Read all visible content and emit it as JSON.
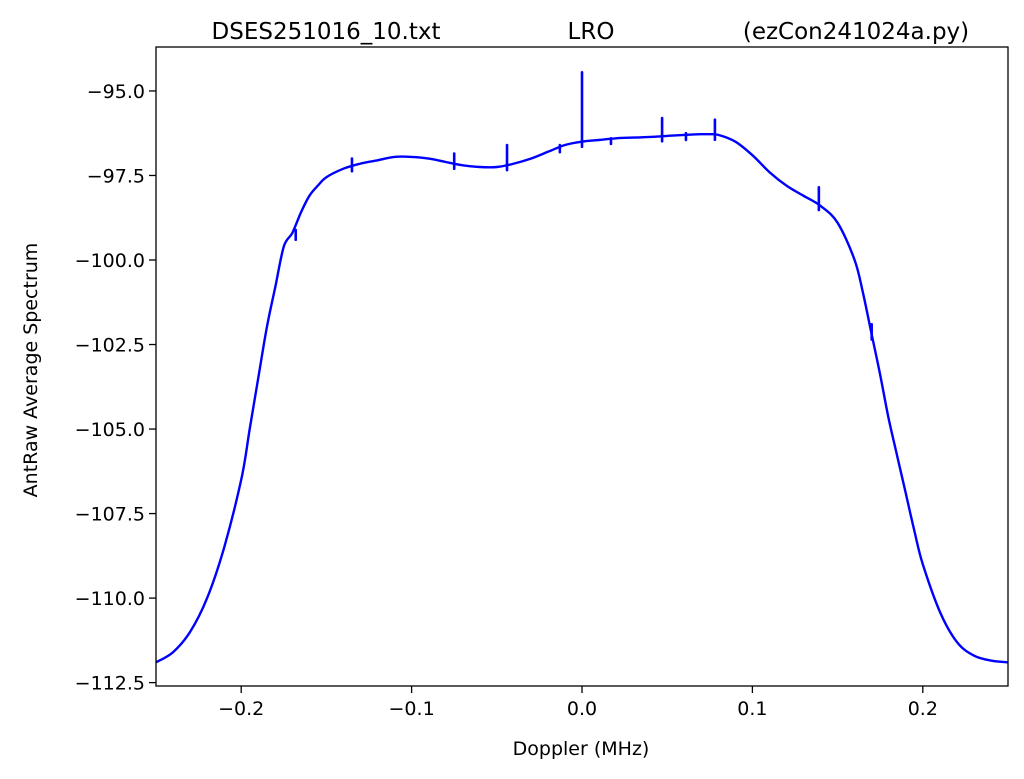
{
  "chart_data": {
    "type": "line",
    "title_parts": [
      "DSES251016_10.txt",
      "LRO",
      "(ezCon241024a.py)"
    ],
    "xlabel": "Doppler (MHz)",
    "ylabel": "AntRaw Average Spectrum",
    "xlim": [
      -0.25,
      0.25
    ],
    "ylim": [
      -112.6,
      -93.7
    ],
    "xticks": [
      -0.2,
      -0.1,
      0.0,
      0.1,
      0.2
    ],
    "xtick_labels": [
      "−0.2",
      "−0.1",
      "0.0",
      "0.1",
      "0.2"
    ],
    "yticks": [
      -95.0,
      -97.5,
      -100.0,
      -102.5,
      -105.0,
      -107.5,
      -110.0,
      -112.5
    ],
    "ytick_labels": [
      "−95.0",
      "−97.5",
      "−100.0",
      "−102.5",
      "−105.0",
      "−107.5",
      "−110.0",
      "−112.5"
    ],
    "grid": false,
    "color": "#0000ff",
    "series": [
      {
        "x": [
          -0.25,
          -0.24,
          -0.23,
          -0.22,
          -0.21,
          -0.2,
          -0.195,
          -0.19,
          -0.185,
          -0.18,
          -0.175,
          -0.17,
          -0.165,
          -0.16,
          -0.155,
          -0.15,
          -0.14,
          -0.13,
          -0.12,
          -0.11,
          -0.1,
          -0.09,
          -0.08,
          -0.07,
          -0.06,
          -0.05,
          -0.04,
          -0.03,
          -0.02,
          -0.01,
          0.0,
          0.01,
          0.02,
          0.03,
          0.04,
          0.05,
          0.06,
          0.07,
          0.075,
          0.08,
          0.09,
          0.1,
          0.11,
          0.12,
          0.13,
          0.14,
          0.15,
          0.16,
          0.165,
          0.17,
          0.175,
          0.18,
          0.185,
          0.19,
          0.195,
          0.2,
          0.21,
          0.22,
          0.23,
          0.24,
          0.25
        ],
        "y": [
          -111.9,
          -111.6,
          -111.0,
          -110.0,
          -108.5,
          -106.5,
          -105.0,
          -103.5,
          -102.0,
          -100.8,
          -99.6,
          -99.2,
          -98.6,
          -98.1,
          -97.8,
          -97.55,
          -97.3,
          -97.15,
          -97.05,
          -96.95,
          -96.95,
          -97.0,
          -97.1,
          -97.2,
          -97.25,
          -97.25,
          -97.15,
          -97.0,
          -96.8,
          -96.6,
          -96.5,
          -96.45,
          -96.4,
          -96.38,
          -96.36,
          -96.33,
          -96.3,
          -96.28,
          -96.28,
          -96.3,
          -96.5,
          -96.9,
          -97.4,
          -97.8,
          -98.1,
          -98.4,
          -98.9,
          -100.0,
          -101.0,
          -102.2,
          -103.4,
          -104.7,
          -105.8,
          -106.9,
          -108.0,
          -109.0,
          -110.4,
          -111.3,
          -111.7,
          -111.85,
          -111.9
        ],
        "spikes": [
          {
            "x": -0.168,
            "y": -99.4
          },
          {
            "x": -0.135,
            "y": -97.0
          },
          {
            "x": -0.075,
            "y": -96.85
          },
          {
            "x": -0.044,
            "y": -96.6
          },
          {
            "x": -0.013,
            "y": -96.6
          },
          {
            "x": 0.0,
            "y": -94.45
          },
          {
            "x": 0.017,
            "y": -96.4
          },
          {
            "x": 0.047,
            "y": -95.8
          },
          {
            "x": 0.061,
            "y": -96.25
          },
          {
            "x": 0.078,
            "y": -95.85
          },
          {
            "x": 0.139,
            "y": -97.85
          },
          {
            "x": 0.17,
            "y": -101.9
          }
        ]
      }
    ]
  }
}
